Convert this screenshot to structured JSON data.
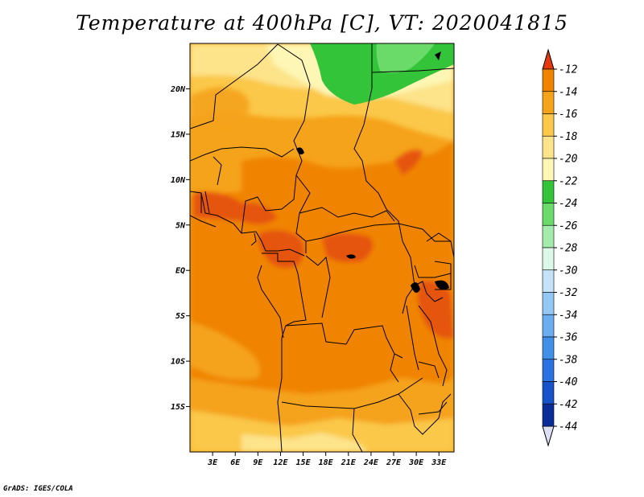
{
  "title": "Temperature at 400hPa [C], VT: 2020041815",
  "credit": "GrADS: IGES/COLA",
  "map": {
    "lat_ticks": [
      "20N",
      "15N",
      "10N",
      "5N",
      "EQ",
      "5S",
      "10S",
      "15S"
    ],
    "lat_values": [
      20,
      15,
      10,
      5,
      0,
      -5,
      -10,
      -15
    ],
    "lon_ticks": [
      "3E",
      "6E",
      "9E",
      "12E",
      "15E",
      "18E",
      "21E",
      "24E",
      "27E",
      "30E",
      "33E"
    ],
    "lon_values": [
      3,
      6,
      9,
      12,
      15,
      18,
      21,
      24,
      27,
      30,
      33
    ],
    "lat_range": [
      -20,
      25
    ],
    "lon_range": [
      0,
      35
    ]
  },
  "colorbar": {
    "labels": [
      "-12",
      "-14",
      "-16",
      "-18",
      "-20",
      "-22",
      "-24",
      "-26",
      "-28",
      "-30",
      "-32",
      "-34",
      "-36",
      "-38",
      "-40",
      "-42",
      "-44"
    ],
    "colors": [
      "#e5540a",
      "#f08400",
      "#f5a31a",
      "#fbc84a",
      "#fde38a",
      "#fdf6b4",
      "#33c43a",
      "#6adb69",
      "#a3ecab",
      "#dcf8e8",
      "#c4e3f8",
      "#94c8f4",
      "#6aaef0",
      "#4090e8",
      "#2a72df",
      "#1652c8",
      "#0a2c98",
      "#04105e"
    ],
    "top_color": "#e53a0e",
    "bottom_color": "#dde0f5"
  }
}
